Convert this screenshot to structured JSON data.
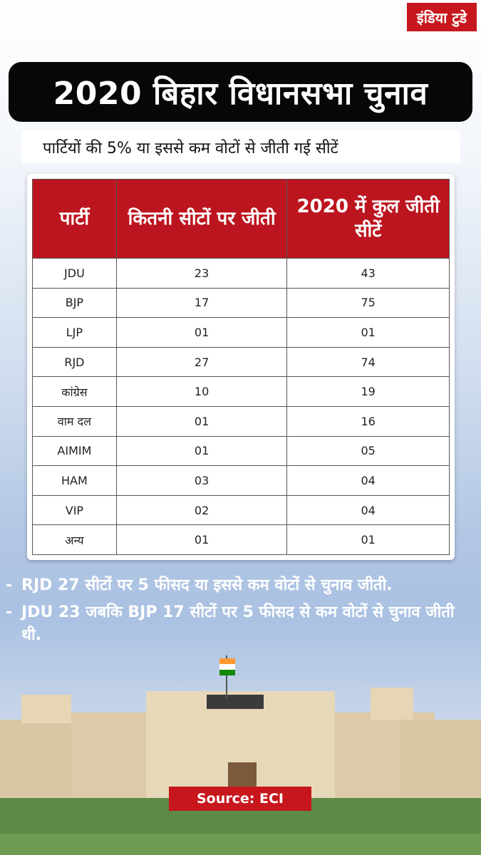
{
  "brand": {
    "logo_text": "इंडिया टुडे"
  },
  "title": "2020 बिहार विधानसभा चुनाव",
  "subtitle": "पार्टियों की 5% या इससे कम वोटों से जीती गई सीटें",
  "colors": {
    "header_red": "#bd1520",
    "title_bg": "#070707",
    "brand_red": "#c8161d"
  },
  "chart_data": {
    "type": "table",
    "columns": [
      "पार्टी",
      "कितनी सीटों पर जीती",
      "2020 में कुल जीती सीटें"
    ],
    "rows": [
      [
        "JDU",
        "23",
        "43"
      ],
      [
        "BJP",
        "17",
        "75"
      ],
      [
        "LJP",
        "01",
        "01"
      ],
      [
        "RJD",
        "27",
        "74"
      ],
      [
        "कांग्रेस",
        "10",
        "19"
      ],
      [
        "वाम दल",
        "01",
        "16"
      ],
      [
        "AIMIM",
        "01",
        "05"
      ],
      [
        "HAM",
        "03",
        "04"
      ],
      [
        "VIP",
        "02",
        "04"
      ],
      [
        "अन्य",
        "01",
        "01"
      ]
    ]
  },
  "notes": [
    "RJD 27 सीटों पर 5 फीसद या इससे कम वोटों से चुनाव जीती.",
    "JDU 23 जबकि BJP 17 सीटों पर 5 फीसद से कम वोटों से चुनाव जीती थी."
  ],
  "source": "Source: ECI"
}
